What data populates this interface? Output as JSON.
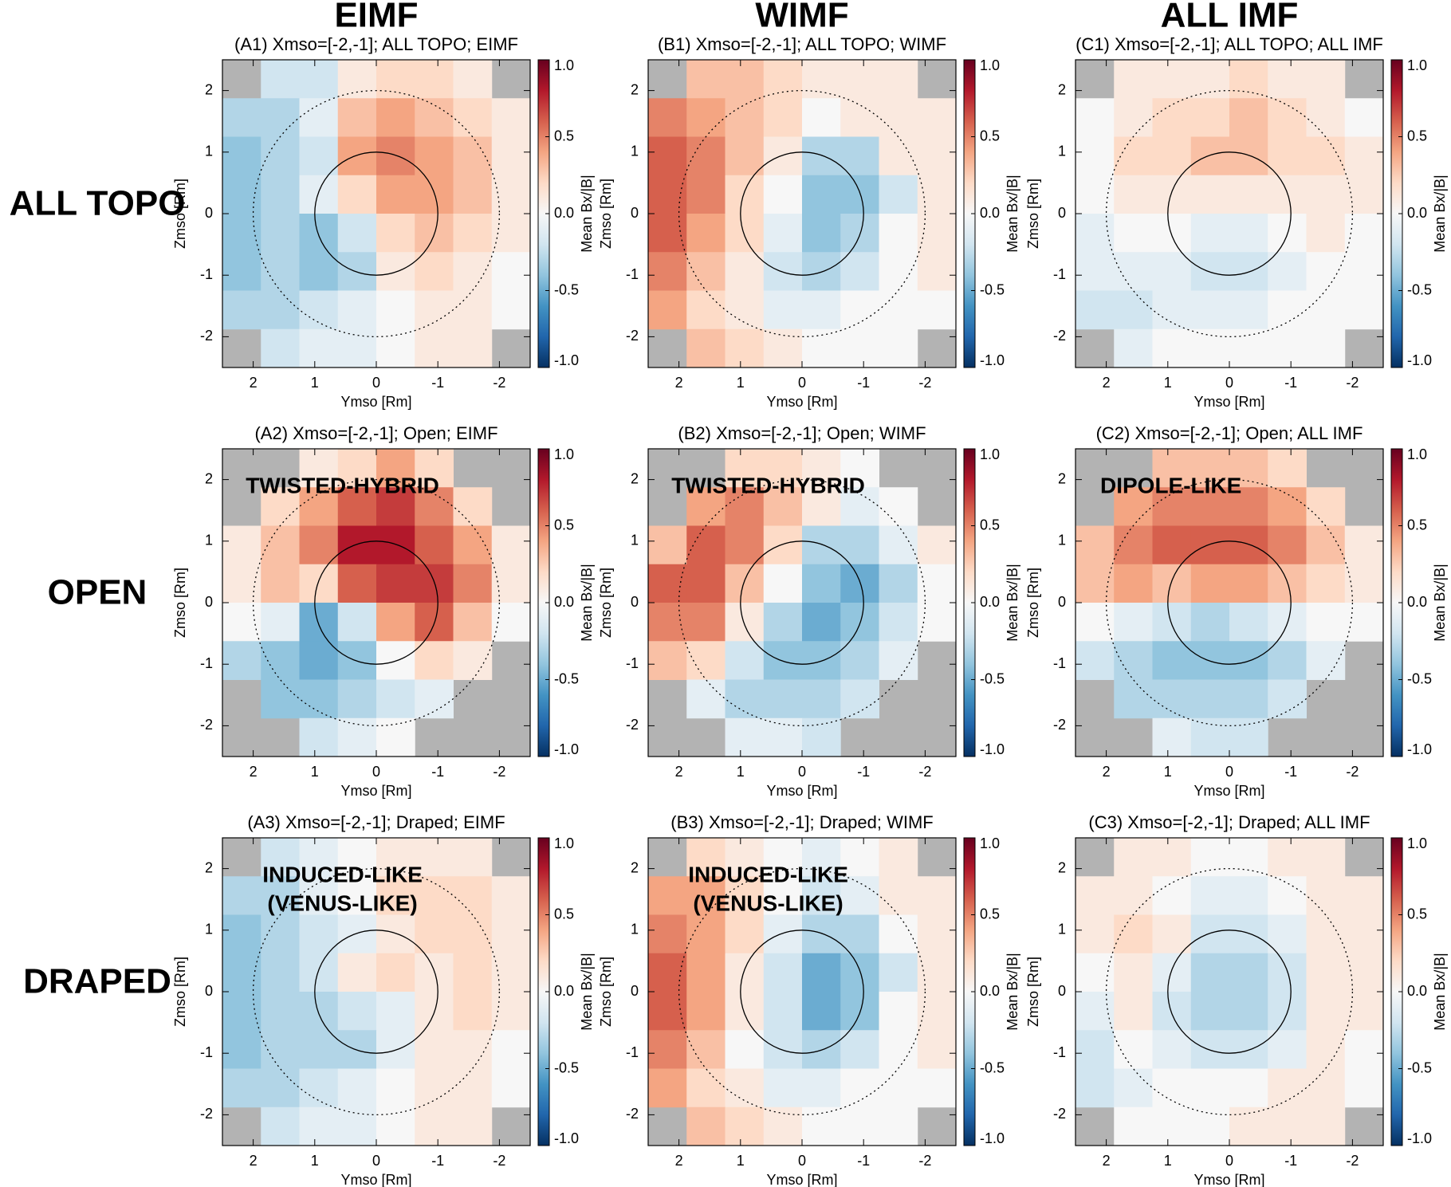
{
  "column_headers": [
    "EIMF",
    "WIMF",
    "ALL IMF"
  ],
  "row_headers": [
    "ALL TOPO",
    "OPEN",
    "DRAPED"
  ],
  "colormap": [
    "#053061",
    "#2166ac",
    "#4393c3",
    "#92c5de",
    "#d1e5f0",
    "#f7f7f7",
    "#fddbc7",
    "#f4a582",
    "#d6604d",
    "#b2182b",
    "#67001f"
  ],
  "nan_color": "#b3b3b3",
  "chart_data": [
    {
      "type": "heatmap",
      "title": "(A1) Xmso=[-2,-1]; ALL TOPO; EIMF",
      "xlabel": "Ymso [Rm]",
      "ylabel": "Zmso [Rm]",
      "colorbar_label": "Mean Bx/|B|",
      "xlim": [
        2.5,
        -2.5
      ],
      "ylim": [
        -2.5,
        2.5
      ],
      "xticks": [
        2,
        1,
        0,
        -1,
        -2
      ],
      "yticks": [
        -2,
        -1,
        0,
        1,
        2
      ],
      "clim": [
        -1,
        1
      ],
      "cticks": [
        {
          "value": 1,
          "label": "1.0"
        },
        {
          "value": 0.5,
          "label": "0.5"
        },
        {
          "value": 0,
          "label": "0.0"
        },
        {
          "value": -0.5,
          "label": "-0.5"
        },
        {
          "value": -1,
          "label": "-1.0"
        }
      ],
      "reference_circles": [
        1,
        2
      ],
      "values": [
        [
          null,
          -0.2,
          -0.2,
          0.1,
          0.2,
          0.2,
          0.1,
          null
        ],
        [
          -0.3,
          -0.3,
          -0.1,
          0.3,
          0.4,
          0.3,
          0.2,
          0.1
        ],
        [
          -0.4,
          -0.3,
          -0.2,
          0.4,
          0.5,
          0.4,
          0.3,
          0.1
        ],
        [
          -0.4,
          -0.3,
          -0.1,
          0.2,
          0.4,
          0.4,
          0.3,
          0.1
        ],
        [
          -0.4,
          -0.3,
          -0.4,
          -0.2,
          0.2,
          0.3,
          0.2,
          0.1
        ],
        [
          -0.4,
          -0.3,
          -0.4,
          -0.3,
          0.1,
          0.2,
          0.1,
          0.0
        ],
        [
          -0.3,
          -0.3,
          -0.2,
          -0.1,
          0.0,
          0.1,
          0.1,
          0.0
        ],
        [
          null,
          -0.2,
          -0.1,
          -0.1,
          0.0,
          0.1,
          0.1,
          null
        ]
      ]
    },
    {
      "type": "heatmap",
      "title": "(B1) Xmso=[-2,-1]; ALL TOPO; WIMF",
      "xlabel": "Ymso [Rm]",
      "ylabel": "Zmso [Rm]",
      "colorbar_label": "Mean Bx/|B|",
      "xlim": [
        2.5,
        -2.5
      ],
      "ylim": [
        -2.5,
        2.5
      ],
      "xticks": [
        2,
        1,
        0,
        -1,
        -2
      ],
      "yticks": [
        -2,
        -1,
        0,
        1,
        2
      ],
      "clim": [
        -1,
        1
      ],
      "cticks": [
        {
          "value": 1,
          "label": "1.0"
        },
        {
          "value": 0.5,
          "label": "0.5"
        },
        {
          "value": 0,
          "label": "0.0"
        },
        {
          "value": -0.5,
          "label": "-0.5"
        },
        {
          "value": -1,
          "label": "-1.0"
        }
      ],
      "reference_circles": [
        1,
        2
      ],
      "values": [
        [
          null,
          0.3,
          0.3,
          0.2,
          0.1,
          0.1,
          0.1,
          null
        ],
        [
          0.5,
          0.4,
          0.3,
          0.2,
          0.0,
          0.1,
          0.1,
          0.1
        ],
        [
          0.6,
          0.5,
          0.3,
          0.1,
          -0.3,
          -0.3,
          0.1,
          0.1
        ],
        [
          0.6,
          0.5,
          0.2,
          0.0,
          -0.4,
          -0.4,
          -0.2,
          0.1
        ],
        [
          0.6,
          0.4,
          0.2,
          -0.1,
          -0.4,
          -0.3,
          0.0,
          0.1
        ],
        [
          0.5,
          0.3,
          0.1,
          -0.2,
          -0.3,
          -0.2,
          0.0,
          0.1
        ],
        [
          0.4,
          0.2,
          0.1,
          -0.1,
          -0.1,
          0.0,
          0.0,
          0.0
        ],
        [
          null,
          0.3,
          0.2,
          0.1,
          0.0,
          0.0,
          0.0,
          null
        ]
      ]
    },
    {
      "type": "heatmap",
      "title": "(C1) Xmso=[-2,-1]; ALL TOPO; ALL IMF",
      "xlabel": "Ymso [Rm]",
      "ylabel": "Zmso [Rm]",
      "colorbar_label": "Mean Bx/|B|",
      "xlim": [
        2.5,
        -2.5
      ],
      "ylim": [
        -2.5,
        2.5
      ],
      "xticks": [
        2,
        1,
        0,
        -1,
        -2
      ],
      "yticks": [
        -2,
        -1,
        0,
        1,
        2
      ],
      "clim": [
        -1,
        1
      ],
      "cticks": [
        {
          "value": 1,
          "label": "1.0"
        },
        {
          "value": 0.5,
          "label": "0.5"
        },
        {
          "value": 0,
          "label": "0.0"
        },
        {
          "value": -0.5,
          "label": "-0.5"
        },
        {
          "value": -1,
          "label": "-1.0"
        }
      ],
      "reference_circles": [
        1,
        2
      ],
      "values": [
        [
          null,
          0.1,
          0.1,
          0.1,
          0.2,
          0.1,
          0.1,
          null
        ],
        [
          0.0,
          0.1,
          0.2,
          0.2,
          0.3,
          0.2,
          0.1,
          0.0
        ],
        [
          0.0,
          0.2,
          0.2,
          0.3,
          0.3,
          0.2,
          0.2,
          0.1
        ],
        [
          0.0,
          0.1,
          0.1,
          0.1,
          0.1,
          0.1,
          0.1,
          0.1
        ],
        [
          -0.1,
          0.0,
          0.0,
          -0.1,
          -0.1,
          0.0,
          0.1,
          0.0
        ],
        [
          -0.1,
          -0.1,
          -0.1,
          -0.2,
          -0.2,
          -0.1,
          0.0,
          0.0
        ],
        [
          -0.2,
          -0.2,
          -0.1,
          -0.1,
          -0.1,
          0.0,
          0.0,
          0.0
        ],
        [
          null,
          -0.1,
          0.0,
          0.0,
          0.0,
          0.0,
          0.0,
          null
        ]
      ]
    },
    {
      "type": "heatmap",
      "title": "(A2) Xmso=[-2,-1]; Open; EIMF",
      "annotation": [
        "TWISTED-HYBRID"
      ],
      "xlabel": "Ymso [Rm]",
      "ylabel": "Zmso [Rm]",
      "colorbar_label": "Mean Bx/|B|",
      "xlim": [
        2.5,
        -2.5
      ],
      "ylim": [
        -2.5,
        2.5
      ],
      "xticks": [
        2,
        1,
        0,
        -1,
        -2
      ],
      "yticks": [
        -2,
        -1,
        0,
        1,
        2
      ],
      "clim": [
        -1,
        1
      ],
      "cticks": [
        {
          "value": 1,
          "label": "1.0"
        },
        {
          "value": 0.5,
          "label": "0.5"
        },
        {
          "value": 0,
          "label": "0.0"
        },
        {
          "value": -0.5,
          "label": "-0.5"
        },
        {
          "value": -1,
          "label": "-1.0"
        }
      ],
      "reference_circles": [
        1,
        2
      ],
      "values": [
        [
          null,
          null,
          0.1,
          0.2,
          0.4,
          0.2,
          null,
          null
        ],
        [
          null,
          0.2,
          0.4,
          0.6,
          0.7,
          0.5,
          0.2,
          null
        ],
        [
          0.1,
          0.3,
          0.5,
          0.8,
          0.8,
          0.6,
          0.4,
          0.1
        ],
        [
          0.1,
          0.3,
          0.2,
          0.6,
          0.7,
          0.7,
          0.5,
          0.1
        ],
        [
          0.0,
          -0.1,
          -0.5,
          -0.2,
          0.4,
          0.6,
          0.3,
          0.0
        ],
        [
          -0.3,
          -0.4,
          -0.5,
          -0.4,
          0.0,
          0.2,
          0.1,
          null
        ],
        [
          null,
          -0.4,
          -0.4,
          -0.3,
          -0.2,
          -0.1,
          null,
          null
        ],
        [
          null,
          null,
          -0.2,
          -0.1,
          0.0,
          null,
          null,
          null
        ]
      ]
    },
    {
      "type": "heatmap",
      "title": "(B2) Xmso=[-2,-1]; Open; WIMF",
      "annotation": [
        "TWISTED-HYBRID"
      ],
      "xlabel": "Ymso [Rm]",
      "ylabel": "Zmso [Rm]",
      "colorbar_label": "Mean Bx/|B|",
      "xlim": [
        2.5,
        -2.5
      ],
      "ylim": [
        -2.5,
        2.5
      ],
      "xticks": [
        2,
        1,
        0,
        -1,
        -2
      ],
      "yticks": [
        -2,
        -1,
        0,
        1,
        2
      ],
      "clim": [
        -1,
        1
      ],
      "cticks": [
        {
          "value": 1,
          "label": "1.0"
        },
        {
          "value": 0.5,
          "label": "0.5"
        },
        {
          "value": 0,
          "label": "0.0"
        },
        {
          "value": -0.5,
          "label": "-0.5"
        },
        {
          "value": -1,
          "label": "-1.0"
        }
      ],
      "reference_circles": [
        1,
        2
      ],
      "values": [
        [
          null,
          null,
          0.2,
          0.2,
          0.1,
          0.0,
          null,
          null
        ],
        [
          null,
          0.4,
          0.5,
          0.3,
          0.1,
          -0.1,
          0.0,
          null
        ],
        [
          0.3,
          0.6,
          0.5,
          0.2,
          -0.3,
          -0.3,
          -0.1,
          0.1
        ],
        [
          0.6,
          0.6,
          0.3,
          0.0,
          -0.4,
          -0.5,
          -0.3,
          0.0
        ],
        [
          0.5,
          0.5,
          0.1,
          -0.3,
          -0.5,
          -0.4,
          -0.2,
          0.0
        ],
        [
          0.3,
          0.2,
          -0.2,
          -0.4,
          -0.4,
          -0.3,
          -0.1,
          null
        ],
        [
          null,
          -0.1,
          -0.3,
          -0.3,
          -0.3,
          -0.2,
          null,
          null
        ],
        [
          null,
          null,
          -0.1,
          -0.1,
          -0.2,
          null,
          null,
          null
        ]
      ]
    },
    {
      "type": "heatmap",
      "title": "(C2) Xmso=[-2,-1]; Open; ALL IMF",
      "annotation": [
        "DIPOLE-LIKE"
      ],
      "xlabel": "Ymso [Rm]",
      "ylabel": "Zmso [Rm]",
      "colorbar_label": "Mean Bx/|B|",
      "xlim": [
        2.5,
        -2.5
      ],
      "ylim": [
        -2.5,
        2.5
      ],
      "xticks": [
        2,
        1,
        0,
        -1,
        -2
      ],
      "yticks": [
        -2,
        -1,
        0,
        1,
        2
      ],
      "clim": [
        -1,
        1
      ],
      "cticks": [
        {
          "value": 1,
          "label": "1.0"
        },
        {
          "value": 0.5,
          "label": "0.5"
        },
        {
          "value": 0,
          "label": "0.0"
        },
        {
          "value": -0.5,
          "label": "-0.5"
        },
        {
          "value": -1,
          "label": "-1.0"
        }
      ],
      "reference_circles": [
        1,
        2
      ],
      "values": [
        [
          null,
          null,
          0.3,
          0.3,
          0.3,
          0.2,
          null,
          null
        ],
        [
          null,
          0.4,
          0.5,
          0.5,
          0.5,
          0.4,
          0.2,
          null
        ],
        [
          0.3,
          0.5,
          0.6,
          0.6,
          0.6,
          0.5,
          0.3,
          0.1
        ],
        [
          0.3,
          0.4,
          0.3,
          0.4,
          0.4,
          0.3,
          0.2,
          0.1
        ],
        [
          0.0,
          -0.1,
          -0.2,
          -0.3,
          -0.2,
          -0.1,
          0.0,
          0.0
        ],
        [
          -0.2,
          -0.3,
          -0.4,
          -0.4,
          -0.4,
          -0.3,
          -0.1,
          null
        ],
        [
          null,
          -0.3,
          -0.3,
          -0.3,
          -0.3,
          -0.2,
          null,
          null
        ],
        [
          null,
          null,
          -0.1,
          -0.2,
          -0.2,
          null,
          null,
          null
        ]
      ]
    },
    {
      "type": "heatmap",
      "title": "(A3) Xmso=[-2,-1]; Draped; EIMF",
      "annotation": [
        "INDUCED-LIKE",
        "(VENUS-LIKE)"
      ],
      "xlabel": "Ymso [Rm]",
      "ylabel": "Zmso [Rm]",
      "colorbar_label": "Mean Bx/|B|",
      "xlim": [
        2.5,
        -2.5
      ],
      "ylim": [
        -2.5,
        2.5
      ],
      "xticks": [
        2,
        1,
        0,
        -1,
        -2
      ],
      "yticks": [
        -2,
        -1,
        0,
        1,
        2
      ],
      "clim": [
        -1,
        1
      ],
      "cticks": [
        {
          "value": 1,
          "label": "1.0"
        },
        {
          "value": 0.5,
          "label": "0.5"
        },
        {
          "value": 0,
          "label": "0.0"
        },
        {
          "value": -0.5,
          "label": "-0.5"
        },
        {
          "value": -1,
          "label": "-1.0"
        }
      ],
      "reference_circles": [
        1,
        2
      ],
      "values": [
        [
          null,
          -0.2,
          -0.1,
          0.0,
          0.1,
          0.1,
          0.1,
          null
        ],
        [
          -0.3,
          -0.3,
          -0.1,
          0.0,
          0.2,
          0.2,
          0.2,
          0.1
        ],
        [
          -0.4,
          -0.3,
          -0.2,
          -0.1,
          0.1,
          0.2,
          0.2,
          0.1
        ],
        [
          -0.4,
          -0.3,
          -0.2,
          0.1,
          0.2,
          0.1,
          0.2,
          0.1
        ],
        [
          -0.4,
          -0.3,
          -0.3,
          -0.2,
          -0.1,
          0.1,
          0.2,
          0.1
        ],
        [
          -0.4,
          -0.3,
          -0.3,
          -0.3,
          -0.1,
          0.1,
          0.1,
          0.0
        ],
        [
          -0.3,
          -0.3,
          -0.2,
          -0.1,
          0.0,
          0.1,
          0.1,
          0.0
        ],
        [
          null,
          -0.2,
          -0.1,
          -0.1,
          0.0,
          0.1,
          0.1,
          null
        ]
      ]
    },
    {
      "type": "heatmap",
      "title": "(B3) Xmso=[-2,-1]; Draped; WIMF",
      "annotation": [
        "INDUCED-LIKE",
        "(VENUS-LIKE)"
      ],
      "xlabel": "Ymso [Rm]",
      "ylabel": "Zmso [Rm]",
      "colorbar_label": "Mean Bx/|B|",
      "xlim": [
        2.5,
        -2.5
      ],
      "ylim": [
        -2.5,
        2.5
      ],
      "xticks": [
        2,
        1,
        0,
        -1,
        -2
      ],
      "yticks": [
        -2,
        -1,
        0,
        1,
        2
      ],
      "clim": [
        -1,
        1
      ],
      "cticks": [
        {
          "value": 1,
          "label": "1.0"
        },
        {
          "value": 0.5,
          "label": "0.5"
        },
        {
          "value": 0,
          "label": "0.0"
        },
        {
          "value": -0.5,
          "label": "-0.5"
        },
        {
          "value": -1,
          "label": "-1.0"
        }
      ],
      "reference_circles": [
        1,
        2
      ],
      "values": [
        [
          null,
          0.2,
          0.1,
          0.0,
          -0.1,
          0.0,
          0.1,
          null
        ],
        [
          0.4,
          0.4,
          0.2,
          0.0,
          -0.2,
          -0.1,
          0.1,
          0.1
        ],
        [
          0.5,
          0.4,
          0.2,
          -0.1,
          -0.3,
          -0.3,
          0.0,
          0.1
        ],
        [
          0.6,
          0.4,
          0.1,
          -0.2,
          -0.5,
          -0.4,
          -0.2,
          0.1
        ],
        [
          0.6,
          0.4,
          0.1,
          -0.2,
          -0.5,
          -0.4,
          0.0,
          0.1
        ],
        [
          0.5,
          0.3,
          0.0,
          -0.2,
          -0.3,
          -0.2,
          0.0,
          0.1
        ],
        [
          0.4,
          0.2,
          0.1,
          -0.1,
          -0.1,
          0.0,
          0.0,
          0.0
        ],
        [
          null,
          0.3,
          0.2,
          0.1,
          0.0,
          0.0,
          0.0,
          null
        ]
      ]
    },
    {
      "type": "heatmap",
      "title": "(C3) Xmso=[-2,-1]; Draped; ALL IMF",
      "xlabel": "Ymso [Rm]",
      "ylabel": "Zmso [Rm]",
      "colorbar_label": "Mean Bx/|B|",
      "xlim": [
        2.5,
        -2.5
      ],
      "ylim": [
        -2.5,
        2.5
      ],
      "xticks": [
        2,
        1,
        0,
        -1,
        -2
      ],
      "yticks": [
        -2,
        -1,
        0,
        1,
        2
      ],
      "clim": [
        -1,
        1
      ],
      "cticks": [
        {
          "value": 1,
          "label": "1.0"
        },
        {
          "value": 0.5,
          "label": "0.5"
        },
        {
          "value": 0,
          "label": "0.0"
        },
        {
          "value": -0.5,
          "label": "-0.5"
        },
        {
          "value": -1,
          "label": "-1.0"
        }
      ],
      "reference_circles": [
        1,
        2
      ],
      "values": [
        [
          null,
          0.1,
          0.1,
          0.0,
          0.0,
          0.1,
          0.1,
          null
        ],
        [
          0.1,
          0.1,
          0.0,
          -0.1,
          -0.1,
          0.0,
          0.1,
          0.1
        ],
        [
          0.1,
          0.2,
          0.1,
          -0.2,
          -0.2,
          -0.1,
          0.1,
          0.1
        ],
        [
          0.0,
          0.1,
          -0.1,
          -0.3,
          -0.3,
          -0.2,
          0.1,
          0.1
        ],
        [
          -0.1,
          0.1,
          -0.2,
          -0.3,
          -0.3,
          -0.2,
          0.1,
          0.1
        ],
        [
          -0.2,
          0.0,
          -0.1,
          -0.2,
          -0.2,
          -0.1,
          0.1,
          0.0
        ],
        [
          -0.2,
          -0.1,
          0.0,
          0.0,
          0.0,
          0.1,
          0.1,
          0.0
        ],
        [
          null,
          0.0,
          0.0,
          0.0,
          0.1,
          0.1,
          0.1,
          null
        ]
      ]
    }
  ]
}
